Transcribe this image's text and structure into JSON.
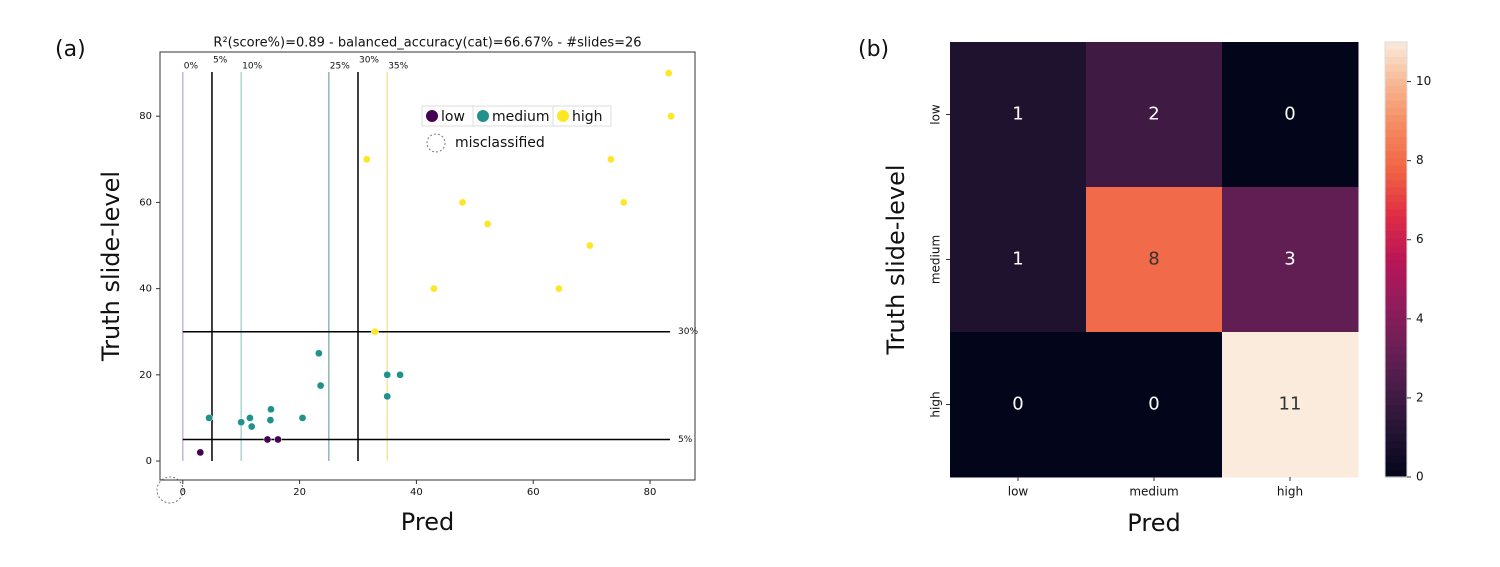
{
  "chart_data": [
    {
      "type": "scatter",
      "label": "(a)",
      "title": "R²(score%)=0.89 - balanced_accuracy(cat)=66.67% - #slides=26",
      "xlabel": "Pred",
      "ylabel": "Truth slide-level",
      "xlim": [
        -3.9,
        87.7
      ],
      "ylim": [
        -4.4,
        94.9
      ],
      "xticks": [
        0,
        20,
        40,
        60,
        80
      ],
      "yticks": [
        0,
        20,
        40,
        60,
        80
      ],
      "series": [
        {
          "name": "low",
          "color": "#440154",
          "x": [
            3,
            14.5,
            16.3
          ],
          "y": [
            2,
            5,
            5
          ]
        },
        {
          "name": "medium",
          "color": "#21918c",
          "x": [
            4.5,
            10,
            11.5,
            11.8,
            15,
            15.1,
            20.5,
            23.3,
            23.6,
            35,
            37.2,
            35
          ],
          "y": [
            10,
            9,
            10,
            8,
            9.5,
            12,
            10,
            25,
            17.5,
            20,
            20,
            15
          ]
        },
        {
          "name": "high",
          "color": "#fde725",
          "x": [
            83.2,
            83.6,
            31.5,
            73.3,
            47.9,
            75.5,
            52.2,
            69.7,
            43,
            64.4,
            32.9
          ],
          "y": [
            90,
            80,
            70,
            70,
            60,
            60,
            55,
            50,
            40,
            40,
            30
          ]
        }
      ],
      "misclassified_label": "misclassified",
      "vlines": [
        {
          "value": 0,
          "label": "0%",
          "color": "#c8b4d8"
        },
        {
          "value": 5,
          "label": "5%",
          "color": "#000000"
        },
        {
          "value": 10,
          "label": "10%",
          "color": "#a8d8d4"
        },
        {
          "value": 25,
          "label": "25%",
          "color": "#8fb8b6"
        },
        {
          "value": 30,
          "label": "30%",
          "color": "#000000"
        },
        {
          "value": 35,
          "label": "35%",
          "color": "#f2e6a0"
        }
      ],
      "hlines": [
        {
          "value": 30,
          "label": "30%",
          "color": "#000000"
        },
        {
          "value": 5,
          "label": "5%",
          "color": "#000000"
        }
      ]
    },
    {
      "type": "heatmap",
      "label": "(b)",
      "xlabel": "Pred",
      "ylabel": "Truth slide-level",
      "x_categories": [
        "low",
        "medium",
        "high"
      ],
      "y_categories": [
        "low",
        "medium",
        "high"
      ],
      "values": [
        [
          1,
          2,
          0
        ],
        [
          1,
          8,
          3
        ],
        [
          0,
          0,
          11
        ]
      ],
      "vlim": [
        0,
        11
      ],
      "colorbar_ticks": [
        0,
        2,
        4,
        6,
        8,
        10
      ],
      "colormap": "rocket"
    }
  ]
}
